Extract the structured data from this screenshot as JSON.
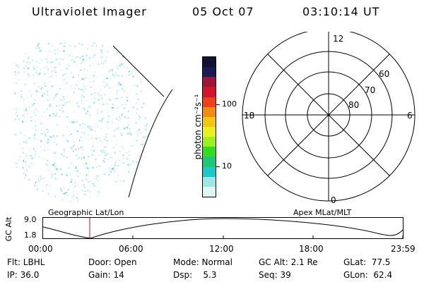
{
  "header": {
    "title": "Ultraviolet Imager",
    "date": "05 Oct 07",
    "time": "03:10:14 UT"
  },
  "colorbar": {
    "label": "photon cm⁻²s⁻¹",
    "ticks": [
      "100",
      "10"
    ],
    "colors": [
      "#111133",
      "#1a1a55",
      "#a0143c",
      "#d4142a",
      "#f04018",
      "#f08c10",
      "#f0c814",
      "#e8f01e",
      "#9cf01e",
      "#32dc1e",
      "#1ec878",
      "#1ec8c8",
      "#9ce6e6",
      "#e0f4f4"
    ]
  },
  "polar_plot": {
    "mlt_labels": {
      "top": "12",
      "left": "18",
      "right": "6",
      "bottom": "0"
    },
    "lat_labels": [
      "60",
      "70",
      "80"
    ]
  },
  "timeline": {
    "ylabel": "GC Alt",
    "left_title": "Geographic Lat/Lon",
    "right_title": "Apex MLat/MLT",
    "y_ticks": [
      "9.0",
      "1.8"
    ],
    "x_ticks": [
      "00:00",
      "06:00",
      "12:00",
      "18:00",
      "23:59"
    ],
    "marker_color": "#cc0033"
  },
  "status": {
    "flt": "Flt: LBHL",
    "ip": "IP: 36.0",
    "door": "Door: Open",
    "gain": "Gain: 14",
    "mode": "Mode: Normal",
    "dsp": "Dsp:    5.3",
    "gc_alt": "GC Alt: 2.1 Re",
    "seq": "Seq: 39",
    "glat": "GLat:  77.5",
    "glon": "GLon:  62.4"
  },
  "image_tint": "#bfe8ea"
}
